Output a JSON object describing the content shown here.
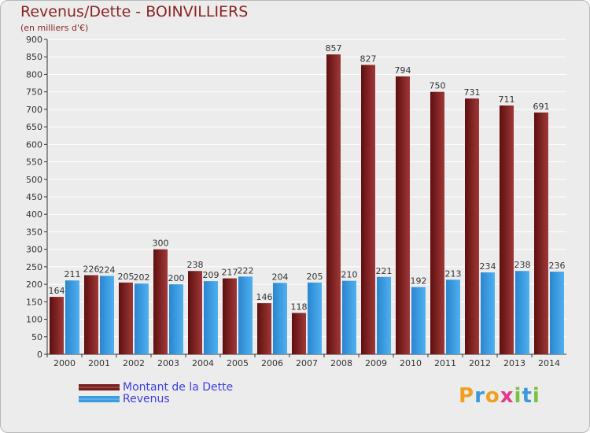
{
  "header": {
    "title": "Revenus/Dette - BOINVILLIERS",
    "subtitle": "(en milliers d'€)"
  },
  "chart_data": {
    "type": "bar",
    "categories": [
      "2000",
      "2001",
      "2002",
      "2003",
      "2004",
      "2005",
      "2006",
      "2007",
      "2008",
      "2009",
      "2010",
      "2011",
      "2012",
      "2013",
      "2014"
    ],
    "series": [
      {
        "name": "Montant de la Dette",
        "color": "#7a1e1e",
        "values": [
          164,
          226,
          205,
          300,
          238,
          217,
          146,
          118,
          857,
          827,
          794,
          750,
          731,
          711,
          691
        ]
      },
      {
        "name": "Revenus",
        "color": "#3b9be0",
        "values": [
          211,
          224,
          202,
          200,
          209,
          222,
          204,
          205,
          210,
          221,
          192,
          213,
          234,
          238,
          236
        ]
      }
    ],
    "yticks": [
      0,
      50,
      100,
      150,
      200,
      250,
      300,
      350,
      400,
      450,
      500,
      550,
      600,
      650,
      700,
      750,
      800,
      850,
      900
    ],
    "ylim": [
      0,
      900
    ],
    "grid": true,
    "legend_position": "bottom-left"
  },
  "legend": {
    "items": [
      {
        "label": "Montant de la Dette",
        "color": "#7a1e1e"
      },
      {
        "label": "Revenus",
        "color": "#3b9be0"
      }
    ]
  },
  "logo": {
    "letters": [
      "P",
      "r",
      "o",
      "x",
      "i",
      "t",
      "i"
    ],
    "colors": [
      "#f0a020",
      "#3a9ad9",
      "#f0a020",
      "#e03a8a",
      "#7cc242",
      "#3a9ad9",
      "#7cc242"
    ]
  }
}
